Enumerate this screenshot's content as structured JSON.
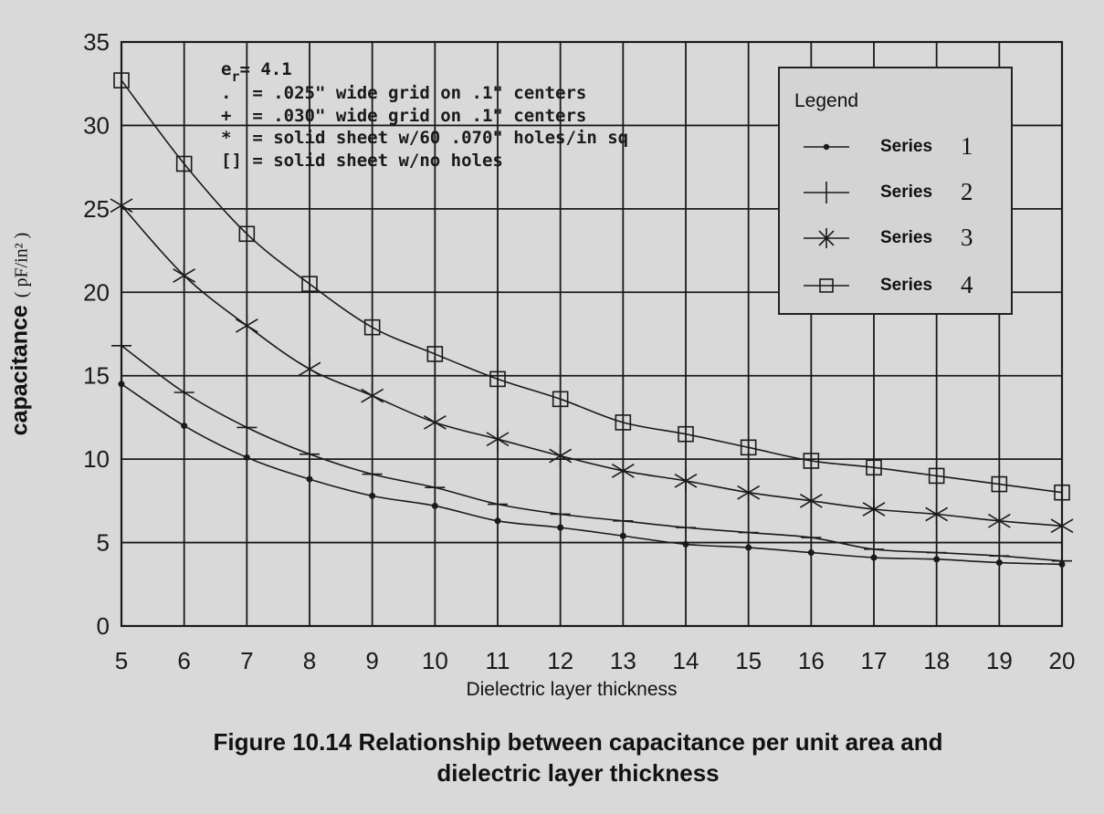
{
  "chart_data": {
    "type": "line",
    "title": "Figure 10.14 Relationship between capacitance per unit area and dielectric layer thickness",
    "xlabel": "Dielectric layer thickness",
    "ylabel": "capacitance",
    "ylabel_unit": "( pF/in² )",
    "xlim": [
      5,
      20
    ],
    "ylim": [
      0,
      35
    ],
    "grid": true,
    "x": [
      5,
      6,
      7,
      8,
      9,
      10,
      11,
      12,
      13,
      14,
      15,
      16,
      17,
      18,
      19,
      20
    ],
    "x_ticks": [
      "5",
      "6",
      "7",
      "8",
      "9",
      "10",
      "11",
      "12",
      "13",
      "14",
      "15",
      "16",
      "17",
      "18",
      "19",
      "20"
    ],
    "y_ticks": [
      "0",
      "5",
      "10",
      "15",
      "20",
      "25",
      "30",
      "35"
    ],
    "legend_position": "upper right",
    "series": [
      {
        "name": "Series 1",
        "marker": "dot",
        "description": ".025\" wide grid on .1\" centers",
        "values": [
          14.5,
          12.0,
          10.1,
          8.8,
          7.8,
          7.2,
          6.3,
          5.9,
          5.4,
          4.9,
          4.7,
          4.4,
          4.1,
          4.0,
          3.8,
          3.7
        ]
      },
      {
        "name": "Series 2",
        "marker": "plus",
        "description": ".030\" wide grid on .1\" centers",
        "values": [
          16.8,
          14.0,
          11.9,
          10.3,
          9.1,
          8.3,
          7.3,
          6.7,
          6.3,
          5.9,
          5.6,
          5.3,
          4.6,
          4.4,
          4.2,
          3.9
        ]
      },
      {
        "name": "Series 3",
        "marker": "star",
        "description": "solid sheet w/60 .070\" holes/in sq",
        "values": [
          25.2,
          21.0,
          18.0,
          15.4,
          13.8,
          12.2,
          11.2,
          10.2,
          9.3,
          8.7,
          8.0,
          7.5,
          7.0,
          6.7,
          6.3,
          6.0
        ]
      },
      {
        "name": "Series 4",
        "marker": "square",
        "description": "solid sheet w/no holes",
        "values": [
          32.7,
          27.7,
          23.5,
          20.5,
          17.9,
          16.3,
          14.8,
          13.6,
          12.2,
          11.5,
          10.7,
          9.9,
          9.5,
          9.0,
          8.5,
          8.0
        ]
      }
    ],
    "annotations": [
      "e_r= 4.1",
      ".  = .025\" wide grid on .1\" centers",
      "+  = .030\" wide grid on .1\" centers",
      "*  = solid sheet w/60 .070\" holes/in sq",
      "[] = solid sheet w/no holes"
    ]
  },
  "annotation": {
    "er_symbol": "e",
    "er_sub": "r",
    "er_value": "= 4.1",
    "lines": [
      ".  = .025\" wide grid on .1\" centers",
      "+  = .030\" wide grid on .1\" centers",
      "*  = solid sheet w/60 .070\" holes/in sq",
      "[] = solid sheet w/no holes"
    ]
  },
  "legend": {
    "title": "Legend",
    "items": [
      {
        "label": "Series",
        "num": "1",
        "marker": "dot"
      },
      {
        "label": "Series",
        "num": "2",
        "marker": "plus"
      },
      {
        "label": "Series",
        "num": "3",
        "marker": "star"
      },
      {
        "label": "Series",
        "num": "4",
        "marker": "square"
      }
    ]
  },
  "axis": {
    "ylabel": "capacitance",
    "ylabel_unit": "( pF/in² )",
    "xlabel": "Dielectric layer thickness"
  },
  "caption": {
    "line1": "Figure 10.14 Relationship between capacitance per unit area and",
    "line2": "dielectric layer thickness"
  },
  "colors": {
    "background": "#d9d9d9",
    "ink": "#1a1a1a"
  }
}
